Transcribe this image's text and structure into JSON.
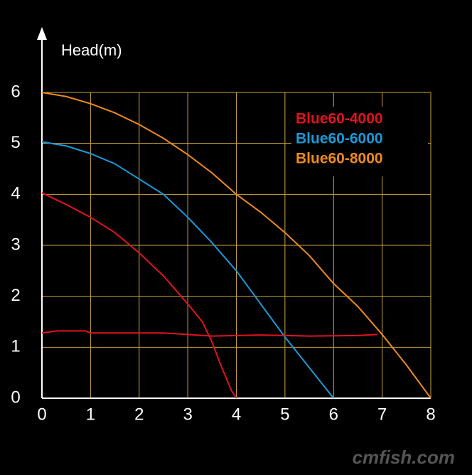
{
  "chart_data": {
    "type": "line",
    "y_label": "Head(m)",
    "xlim": [
      0,
      8
    ],
    "xticks": [
      0,
      1,
      2,
      3,
      4,
      5,
      6,
      7,
      8
    ],
    "ylim": [
      0,
      6
    ],
    "yticks": [
      0,
      1,
      2,
      3,
      4,
      5,
      6
    ],
    "grid": true,
    "grid_color": "#c9a640",
    "legend": "upper right",
    "series": [
      {
        "name": "Blue60-4000",
        "color": "#e0141e",
        "x": [
          0,
          0.5,
          1,
          1.5,
          2,
          2.5,
          3,
          3.3,
          3.5,
          3.7,
          3.9,
          4
        ],
        "values": [
          4.03,
          3.8,
          3.55,
          3.25,
          2.85,
          2.4,
          1.85,
          1.5,
          1.1,
          0.6,
          0.15,
          0
        ]
      },
      {
        "name": "Blue60-6000",
        "color": "#1a9ad8",
        "x": [
          0,
          0.5,
          1,
          1.5,
          2,
          2.5,
          3,
          3.5,
          4,
          4.5,
          5,
          5.5,
          6
        ],
        "values": [
          5.03,
          4.95,
          4.8,
          4.6,
          4.3,
          4.0,
          3.55,
          3.05,
          2.5,
          1.85,
          1.2,
          0.6,
          0
        ]
      },
      {
        "name": "Blue60-8000",
        "color": "#ee8a1e",
        "x": [
          0,
          0.5,
          1,
          1.5,
          2,
          2.5,
          3,
          3.5,
          4,
          4.5,
          5,
          5.5,
          6,
          6.5,
          7,
          7.5,
          8
        ],
        "values": [
          6.0,
          5.92,
          5.78,
          5.6,
          5.37,
          5.1,
          4.78,
          4.42,
          4.0,
          3.65,
          3.25,
          2.8,
          2.25,
          1.8,
          1.25,
          0.65,
          0
        ]
      },
      {
        "color": "#e0141e",
        "x": [
          0,
          0.3,
          0.9,
          1,
          2.5,
          3,
          3.5,
          4.5,
          5.5,
          6.5,
          6.9
        ],
        "values": [
          1.28,
          1.32,
          1.32,
          1.28,
          1.28,
          1.25,
          1.22,
          1.24,
          1.22,
          1.23,
          1.25
        ]
      }
    ],
    "watermark": "cmfish.com"
  }
}
